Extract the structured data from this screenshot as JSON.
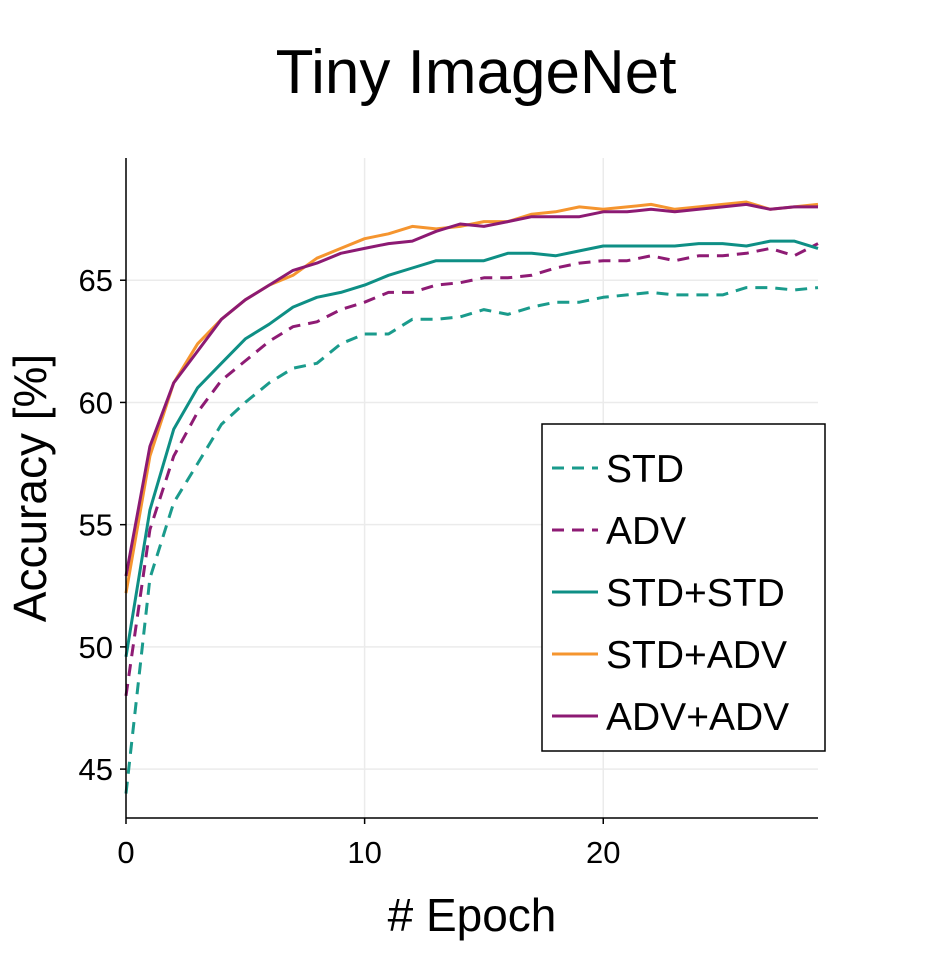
{
  "chart_data": {
    "type": "line",
    "title": "Tiny ImageNet",
    "xlabel": "# Epoch",
    "ylabel": "Accuracy [%]",
    "xlim": [
      0,
      29
    ],
    "ylim": [
      43,
      70
    ],
    "xticks": [
      0,
      10,
      20
    ],
    "yticks": [
      45,
      50,
      55,
      60,
      65
    ],
    "grid": true,
    "legend_position": "center-right",
    "x": [
      0,
      1,
      2,
      3,
      4,
      5,
      6,
      7,
      8,
      9,
      10,
      11,
      12,
      13,
      14,
      15,
      16,
      17,
      18,
      19,
      20,
      21,
      22,
      23,
      24,
      25,
      26,
      27,
      28,
      29
    ],
    "series": [
      {
        "name": "STD",
        "style": "dashed",
        "color": "#1a9b8c",
        "values": [
          44.0,
          52.8,
          55.9,
          57.5,
          59.1,
          60.0,
          60.8,
          61.4,
          61.6,
          62.4,
          62.8,
          62.8,
          63.4,
          63.4,
          63.5,
          63.8,
          63.6,
          63.9,
          64.1,
          64.1,
          64.3,
          64.4,
          64.5,
          64.4,
          64.4,
          64.4,
          64.7,
          64.7,
          64.6,
          64.7
        ]
      },
      {
        "name": "ADV",
        "style": "dashed",
        "color": "#8e1b74",
        "values": [
          48.0,
          54.8,
          57.8,
          59.6,
          60.9,
          61.7,
          62.5,
          63.1,
          63.3,
          63.8,
          64.1,
          64.5,
          64.5,
          64.8,
          64.9,
          65.1,
          65.1,
          65.2,
          65.5,
          65.7,
          65.8,
          65.8,
          66.0,
          65.8,
          66.0,
          66.0,
          66.1,
          66.3,
          66.0,
          66.5
        ]
      },
      {
        "name": "STD+STD",
        "style": "solid",
        "color": "#0e8f85",
        "values": [
          49.6,
          55.6,
          58.9,
          60.6,
          61.6,
          62.6,
          63.2,
          63.9,
          64.3,
          64.5,
          64.8,
          65.2,
          65.5,
          65.8,
          65.8,
          65.8,
          66.1,
          66.1,
          66.0,
          66.2,
          66.4,
          66.4,
          66.4,
          66.4,
          66.5,
          66.5,
          66.4,
          66.6,
          66.6,
          66.3
        ]
      },
      {
        "name": "STD+ADV",
        "style": "solid",
        "color": "#f5952f",
        "values": [
          52.2,
          57.8,
          60.8,
          62.4,
          63.4,
          64.2,
          64.8,
          65.2,
          65.9,
          66.3,
          66.7,
          66.9,
          67.2,
          67.1,
          67.2,
          67.4,
          67.4,
          67.7,
          67.8,
          68.0,
          67.9,
          68.0,
          68.1,
          67.9,
          68.0,
          68.1,
          68.2,
          67.9,
          68.0,
          68.1
        ]
      },
      {
        "name": "ADV+ADV",
        "style": "solid",
        "color": "#8c1a73",
        "values": [
          52.9,
          58.2,
          60.8,
          62.1,
          63.4,
          64.2,
          64.8,
          65.4,
          65.7,
          66.1,
          66.3,
          66.5,
          66.6,
          67.0,
          67.3,
          67.2,
          67.4,
          67.6,
          67.6,
          67.6,
          67.8,
          67.8,
          67.9,
          67.8,
          67.9,
          68.0,
          68.1,
          67.9,
          68.0,
          68.0
        ]
      }
    ]
  }
}
